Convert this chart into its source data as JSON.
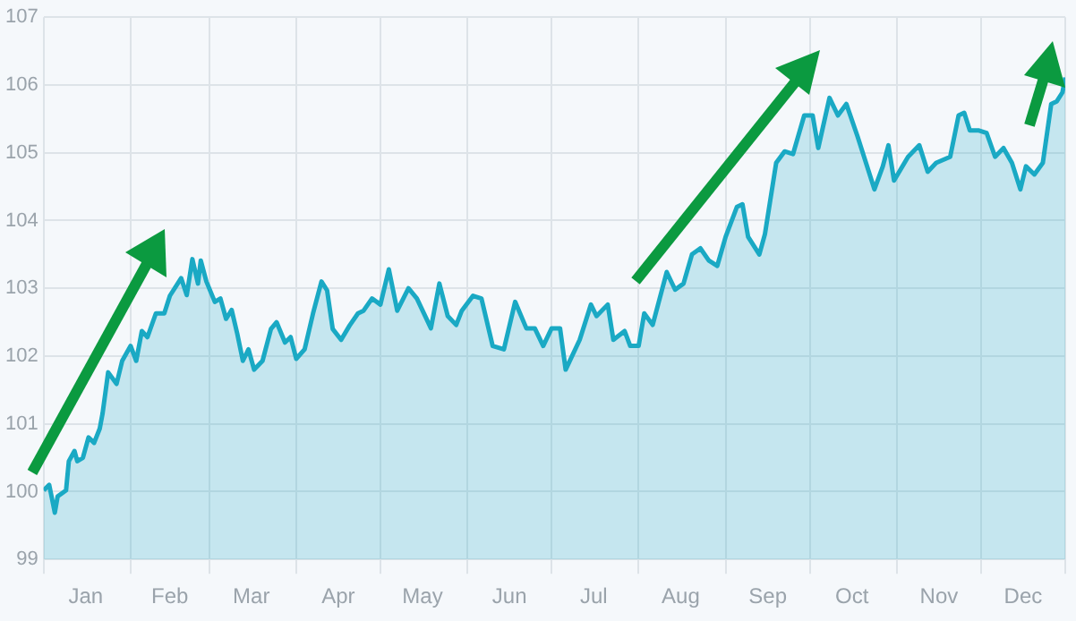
{
  "chart_data": {
    "type": "area",
    "xlim": [
      "--01-01",
      "--12-31"
    ],
    "ylim": [
      99,
      107
    ],
    "yticks": [
      99,
      100,
      101,
      102,
      103,
      104,
      105,
      106,
      107
    ],
    "xticks": [
      {
        "value": "--01-01",
        "label": null
      },
      {
        "value": "--01-16",
        "label": "Jan"
      },
      {
        "value": "--02-01",
        "label": null
      },
      {
        "value": "--02-15",
        "label": "Feb"
      },
      {
        "value": "--03-01",
        "label": null
      },
      {
        "value": "--03-16",
        "label": "Mar"
      },
      {
        "value": "--04-01",
        "label": null
      },
      {
        "value": "--04-16",
        "label": "Apr"
      },
      {
        "value": "--05-01",
        "label": null
      },
      {
        "value": "--05-16",
        "label": "May"
      },
      {
        "value": "--06-01",
        "label": null
      },
      {
        "value": "--06-16",
        "label": "Jun"
      },
      {
        "value": "--07-01",
        "label": null
      },
      {
        "value": "--07-16",
        "label": "Jul"
      },
      {
        "value": "--08-01",
        "label": null
      },
      {
        "value": "--08-16",
        "label": "Aug"
      },
      {
        "value": "--09-01",
        "label": null
      },
      {
        "value": "--09-16",
        "label": "Sep"
      },
      {
        "value": "--10-01",
        "label": null
      },
      {
        "value": "--10-16",
        "label": "Oct"
      },
      {
        "value": "--11-01",
        "label": null
      },
      {
        "value": "--11-16",
        "label": "Nov"
      },
      {
        "value": "--12-01",
        "label": null
      },
      {
        "value": "--12-16",
        "label": "Dec"
      },
      {
        "value": "--12-31",
        "label": null
      }
    ],
    "grid": true,
    "legend": false,
    "marker": "none",
    "series": [
      {
        "color": "#1aa9c4",
        "x": [
          "--01-01",
          "--01-03",
          "--01-05",
          "--01-06",
          "--01-09",
          "--01-10",
          "--01-12",
          "--01-13",
          "--01-15",
          "--01-17",
          "--01-19",
          "--01-21",
          "--01-22",
          "--01-24",
          "--01-27",
          "--01-29",
          "--02-01",
          "--02-03",
          "--02-05",
          "--02-07",
          "--02-10",
          "--02-13",
          "--02-15",
          "--02-19",
          "--02-21",
          "--02-23",
          "--02-25",
          "--02-26",
          "--02-28",
          "--03-03",
          "--03-05",
          "--03-07",
          "--03-09",
          "--03-11",
          "--03-13",
          "--03-15",
          "--03-17",
          "--03-20",
          "--03-23",
          "--03-25",
          "--03-28",
          "--03-30",
          "--04-01",
          "--04-04",
          "--04-07",
          "--04-10",
          "--04-12",
          "--04-14",
          "--04-17",
          "--04-20",
          "--04-23",
          "--04-25",
          "--04-28",
          "--05-01",
          "--05-04",
          "--05-07",
          "--05-11",
          "--05-14",
          "--05-19",
          "--05-22",
          "--05-25",
          "--05-28",
          "--05-30",
          "--06-03",
          "--06-06",
          "--06-10",
          "--06-14",
          "--06-18",
          "--06-22",
          "--06-25",
          "--06-28",
          "--07-01",
          "--07-04",
          "--07-06",
          "--07-11",
          "--07-15",
          "--07-17",
          "--07-21",
          "--07-23",
          "--07-27",
          "--07-29",
          "--08-01",
          "--08-03",
          "--08-06",
          "--08-11",
          "--08-14",
          "--08-17",
          "--08-20",
          "--08-23",
          "--08-26",
          "--08-29",
          "--09-01",
          "--09-05",
          "--09-07",
          "--09-09",
          "--09-13",
          "--09-15",
          "--09-19",
          "--09-22",
          "--09-25",
          "--09-29",
          "--10-02",
          "--10-04",
          "--10-08",
          "--10-11",
          "--10-14",
          "--10-18",
          "--10-21",
          "--10-24",
          "--10-27",
          "--10-29",
          "--10-31",
          "--11-05",
          "--11-09",
          "--11-12",
          "--11-15",
          "--11-20",
          "--11-23",
          "--11-25",
          "--11-27",
          "--11-30",
          "--12-03",
          "--12-06",
          "--12-09",
          "--12-12",
          "--12-15",
          "--12-17",
          "--12-20",
          "--12-23",
          "--12-26",
          "--12-28",
          "--12-30",
          "--12-31"
        ],
        "values": [
          100.02,
          100.1,
          99.69,
          99.93,
          100.02,
          100.45,
          100.6,
          100.45,
          100.5,
          100.8,
          100.72,
          100.93,
          101.15,
          101.76,
          101.59,
          101.93,
          102.15,
          101.93,
          102.37,
          102.28,
          102.63,
          102.63,
          102.89,
          103.15,
          102.9,
          103.43,
          103.07,
          103.41,
          103.1,
          102.8,
          102.85,
          102.55,
          102.68,
          102.33,
          101.93,
          102.1,
          101.8,
          101.93,
          102.4,
          102.5,
          102.2,
          102.28,
          101.96,
          102.1,
          102.63,
          103.1,
          102.97,
          102.4,
          102.24,
          102.45,
          102.63,
          102.67,
          102.85,
          102.76,
          103.28,
          102.67,
          103.0,
          102.85,
          102.41,
          103.07,
          102.59,
          102.46,
          102.67,
          102.89,
          102.85,
          102.15,
          102.1,
          102.8,
          102.41,
          102.41,
          102.15,
          102.41,
          102.41,
          101.8,
          102.24,
          102.76,
          102.59,
          102.76,
          102.24,
          102.37,
          102.15,
          102.15,
          102.63,
          102.46,
          103.24,
          102.98,
          103.07,
          103.5,
          103.59,
          103.41,
          103.33,
          103.76,
          104.2,
          104.24,
          103.76,
          103.5,
          103.8,
          104.85,
          105.02,
          104.98,
          105.55,
          105.55,
          105.07,
          105.81,
          105.55,
          105.72,
          105.24,
          104.85,
          104.46,
          104.8,
          105.11,
          104.59,
          104.94,
          105.11,
          104.72,
          104.85,
          104.94,
          105.55,
          105.59,
          105.33,
          105.33,
          105.29,
          104.94,
          105.07,
          104.85,
          104.46,
          104.8,
          104.68,
          104.85,
          105.72,
          105.76,
          105.89,
          106.11
        ]
      }
    ]
  }
}
